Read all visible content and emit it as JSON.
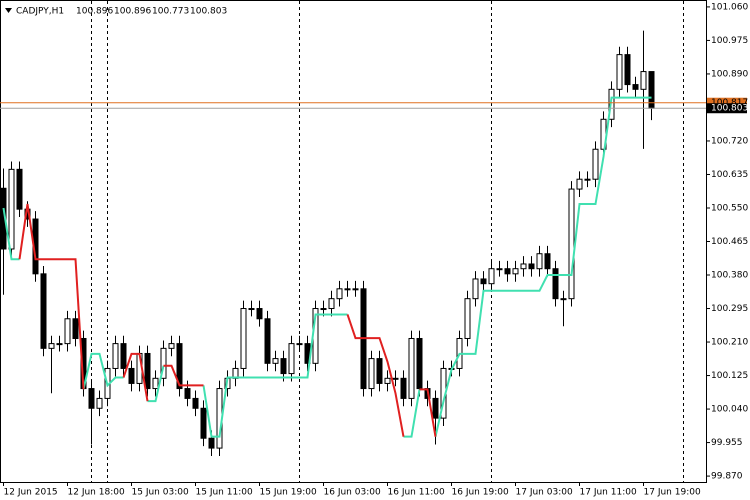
{
  "chart_data": {
    "type": "candlestick",
    "header": {
      "symbol": "CADJPY,H1",
      "open": 100.896,
      "high": 100.896,
      "low": 100.773,
      "close": 100.803
    },
    "categories": [
      "12 Jun 2015",
      null,
      null,
      null,
      null,
      null,
      null,
      null,
      "12 Jun 18:00",
      null,
      null,
      null,
      null,
      null,
      null,
      null,
      "15 Jun 03:00",
      null,
      null,
      null,
      null,
      null,
      null,
      null,
      "15 Jun 11:00",
      null,
      null,
      null,
      null,
      null,
      null,
      null,
      "15 Jun 19:00",
      null,
      null,
      null,
      null,
      null,
      null,
      null,
      "16 Jun 03:00",
      null,
      null,
      null,
      null,
      null,
      null,
      null,
      "16 Jun 11:00",
      null,
      null,
      null,
      null,
      null,
      null,
      null,
      "16 Jun 19:00",
      null,
      null,
      null,
      null,
      null,
      null,
      null,
      "17 Jun 03:00",
      null,
      null,
      null,
      null,
      null,
      null,
      null,
      "17 Jun 11:00",
      null,
      null,
      null,
      null,
      null,
      null,
      null,
      "17 Jun 19:00",
      null
    ],
    "open": [
      100.6,
      100.446,
      100.648,
      100.547,
      100.522,
      100.383,
      100.194,
      100.206,
      100.206,
      100.269,
      100.219,
      100.092,
      100.042,
      100.067,
      100.143,
      100.206,
      100.143,
      100.105,
      100.181,
      100.092,
      100.118,
      100.194,
      100.206,
      100.092,
      100.067,
      100.042,
      99.966,
      99.941,
      100.092,
      100.118,
      100.143,
      100.295,
      100.295,
      100.269,
      100.156,
      100.168,
      100.13,
      100.206,
      100.206,
      100.156,
      100.295,
      100.295,
      100.32,
      100.345,
      100.345,
      100.345,
      100.092,
      100.168,
      100.105,
      100.118,
      100.118,
      100.067,
      100.219,
      100.092,
      100.067,
      100.017,
      100.143,
      100.143,
      100.219,
      100.32,
      100.37,
      100.358,
      100.396,
      100.396,
      100.383,
      100.396,
      100.408,
      100.396,
      100.434,
      100.396,
      100.32,
      100.32,
      100.598,
      100.623,
      100.623,
      100.699,
      100.775,
      100.851,
      100.939,
      100.863,
      100.851,
      100.896
    ],
    "high": [
      100.65,
      100.668,
      100.668,
      100.567,
      100.542,
      100.403,
      100.226,
      100.226,
      100.289,
      100.289,
      100.239,
      100.112,
      100.087,
      100.163,
      100.226,
      100.226,
      100.163,
      100.201,
      100.201,
      100.138,
      100.214,
      100.226,
      100.226,
      100.112,
      100.087,
      100.062,
      99.986,
      100.112,
      100.138,
      100.163,
      100.315,
      100.315,
      100.315,
      100.289,
      100.188,
      100.188,
      100.226,
      100.226,
      100.226,
      100.315,
      100.315,
      100.34,
      100.365,
      100.365,
      100.365,
      100.365,
      100.188,
      100.188,
      100.138,
      100.138,
      100.138,
      100.239,
      100.239,
      100.112,
      100.087,
      100.163,
      100.163,
      100.239,
      100.34,
      100.39,
      100.39,
      100.416,
      100.416,
      100.416,
      100.416,
      100.428,
      100.428,
      100.454,
      100.454,
      100.416,
      100.34,
      100.618,
      100.643,
      100.643,
      100.719,
      100.795,
      100.871,
      100.959,
      100.959,
      100.883,
      101.0,
      100.896
    ],
    "low": [
      100.33,
      100.426,
      100.527,
      100.502,
      100.363,
      100.174,
      100.08,
      100.186,
      100.186,
      100.199,
      100.072,
      99.95,
      100.022,
      100.047,
      100.123,
      100.123,
      100.085,
      100.085,
      100.072,
      100.072,
      100.098,
      100.174,
      100.072,
      100.047,
      100.022,
      99.946,
      99.921,
      99.921,
      100.072,
      100.098,
      100.123,
      100.275,
      100.249,
      100.136,
      100.136,
      100.11,
      100.11,
      100.186,
      100.136,
      100.136,
      100.275,
      100.275,
      100.3,
      100.325,
      100.325,
      100.072,
      100.072,
      100.085,
      100.085,
      100.098,
      100.047,
      100.047,
      100.072,
      100.047,
      99.95,
      99.997,
      100.123,
      100.123,
      100.199,
      100.3,
      100.338,
      100.338,
      100.376,
      100.363,
      100.363,
      100.376,
      100.376,
      100.376,
      100.376,
      100.3,
      100.25,
      100.3,
      100.578,
      100.603,
      100.603,
      100.679,
      100.755,
      100.831,
      100.843,
      100.831,
      100.7,
      100.773
    ],
    "close": [
      100.446,
      100.648,
      100.547,
      100.522,
      100.383,
      100.194,
      100.206,
      100.206,
      100.269,
      100.219,
      100.092,
      100.042,
      100.067,
      100.143,
      100.206,
      100.143,
      100.105,
      100.181,
      100.092,
      100.118,
      100.194,
      100.206,
      100.092,
      100.067,
      100.042,
      99.966,
      99.941,
      100.092,
      100.118,
      100.143,
      100.295,
      100.295,
      100.269,
      100.156,
      100.168,
      100.13,
      100.206,
      100.206,
      100.156,
      100.295,
      100.295,
      100.32,
      100.345,
      100.345,
      100.345,
      100.092,
      100.168,
      100.105,
      100.118,
      100.118,
      100.067,
      100.219,
      100.092,
      100.067,
      100.017,
      100.143,
      100.143,
      100.219,
      100.32,
      100.37,
      100.358,
      100.396,
      100.396,
      100.383,
      100.396,
      100.408,
      100.396,
      100.434,
      100.396,
      100.32,
      100.32,
      100.598,
      100.623,
      100.623,
      100.699,
      100.775,
      100.851,
      100.939,
      100.863,
      100.851,
      100.896,
      100.803
    ],
    "series": [
      {
        "color": "#40e0b0",
        "values": [
          100.55,
          100.42,
          100.42,
          null,
          null,
          null,
          null,
          null,
          null,
          null,
          100.09,
          100.18,
          100.18,
          100.1,
          100.12,
          100.12,
          null,
          null,
          100.06,
          100.06,
          100.15,
          null,
          null,
          null,
          null,
          100.1,
          99.97,
          99.97,
          100.12,
          100.12,
          100.12,
          100.12,
          100.12,
          100.12,
          100.12,
          100.12,
          100.12,
          100.12,
          100.12,
          100.28,
          100.28,
          100.28,
          100.28,
          100.28,
          null,
          null,
          null,
          null,
          null,
          null,
          99.97,
          99.97,
          100.09,
          null,
          99.97,
          100.06,
          100.14,
          100.18,
          100.18,
          100.18,
          100.34,
          100.34,
          100.34,
          100.34,
          100.34,
          100.34,
          100.34,
          100.34,
          100.38,
          100.38,
          100.38,
          100.38,
          100.56,
          100.56,
          100.56,
          100.68,
          100.83,
          100.83,
          100.83,
          100.83,
          100.83,
          100.83
        ]
      },
      {
        "color": "#e02020",
        "values": [
          null,
          null,
          100.42,
          100.56,
          100.42,
          100.42,
          100.42,
          100.42,
          100.42,
          100.42,
          100.09,
          null,
          null,
          null,
          null,
          100.12,
          100.18,
          100.18,
          100.06,
          null,
          100.15,
          100.15,
          100.1,
          100.1,
          100.1,
          100.1,
          null,
          null,
          null,
          null,
          null,
          null,
          null,
          null,
          null,
          null,
          null,
          null,
          null,
          null,
          null,
          null,
          null,
          100.28,
          100.22,
          100.22,
          100.22,
          100.22,
          100.16,
          100.08,
          99.97,
          null,
          100.09,
          100.09,
          99.97,
          null,
          null,
          null,
          null,
          null,
          null,
          null,
          null,
          null,
          null,
          null,
          null,
          null,
          null,
          null,
          null,
          null,
          null,
          null,
          null,
          null,
          null,
          null,
          null,
          null,
          null,
          null
        ]
      }
    ],
    "price_lines": [
      {
        "value": 100.817,
        "color": "#e07020",
        "label_color": "#000000"
      },
      {
        "value": 100.803,
        "color": "#a0a0a0",
        "label_color": "#ffffff"
      }
    ],
    "ylim": [
      99.855,
      101.075
    ],
    "yticks": [
      {
        "value": 101.06,
        "label": "101.060"
      },
      100.975,
      {
        "value": 100.89,
        "label": "100.890"
      },
      {
        "value": 100.72,
        "label": "100.720"
      },
      100.635,
      {
        "value": 100.55,
        "label": "100.550"
      },
      100.465,
      {
        "value": 100.38,
        "label": "100.380"
      },
      100.295,
      {
        "value": 100.21,
        "label": "100.210"
      },
      100.125,
      {
        "value": 100.04,
        "label": "100.040"
      },
      99.955,
      {
        "value": 99.87,
        "label": "99.870"
      }
    ]
  }
}
